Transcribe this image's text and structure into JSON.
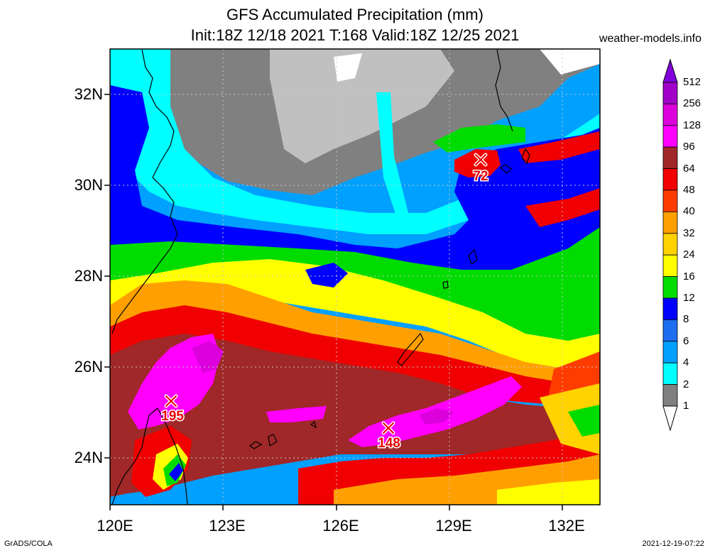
{
  "header": {
    "title_line1": "GFS Accumulated Precipitation (mm)",
    "title_line2": "Init:18Z 12/18 2021 T:168 Valid:18Z 12/25 2021",
    "source": "weather-models.info"
  },
  "footer": {
    "left": "GrADS/COLA",
    "right": "2021-12-19-07:22"
  },
  "axes": {
    "lat_labels": [
      "32N",
      "30N",
      "28N",
      "26N",
      "24N"
    ],
    "lon_labels": [
      "120E",
      "123E",
      "126E",
      "129E",
      "132E"
    ]
  },
  "legend": {
    "levels": [
      "512",
      "256",
      "128",
      "96",
      "64",
      "48",
      "40",
      "32",
      "24",
      "16",
      "12",
      "8",
      "6",
      "4",
      "2",
      "1"
    ],
    "colors": [
      "#8200dc",
      "#a000c8",
      "#dc00dc",
      "#ff00ff",
      "#a02828",
      "#f00000",
      "#ff3c00",
      "#ffa000",
      "#ffd200",
      "#ffff00",
      "#00dc00",
      "#0000ff",
      "#1e6ef0",
      "#00a0ff",
      "#00ffff",
      "#808080",
      "#c0c0c0"
    ]
  },
  "markers": [
    {
      "value": "72"
    },
    {
      "value": "195"
    },
    {
      "value": "148"
    }
  ]
}
